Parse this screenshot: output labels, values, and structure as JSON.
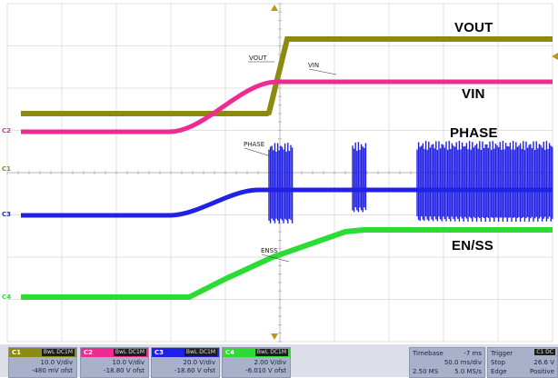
{
  "traces": {
    "vout": {
      "label": "VOUT",
      "tag": "VOUT",
      "color": "#8c8a10"
    },
    "vin": {
      "label": "VIN",
      "tag": "VIN",
      "color": "#ee2a93"
    },
    "phase": {
      "label": "PHASE",
      "tag": "PHASE",
      "color": "#2020e6"
    },
    "enss": {
      "label": "EN/SS",
      "tag": "ENSS",
      "color": "#2bdc35"
    }
  },
  "markers": {
    "c2": "C2",
    "c1": "C1",
    "c3": "C3",
    "c4": "C4"
  },
  "channels": [
    {
      "id": "C1",
      "cpl": "BwL DC1M",
      "vdiv": "10.0 V/div",
      "ofst": "-480 mV ofst",
      "color": "#8c8a10"
    },
    {
      "id": "C2",
      "cpl": "BwL DC1M",
      "vdiv": "10.0 V/div",
      "ofst": "-18.80 V ofst",
      "color": "#ee2a93"
    },
    {
      "id": "C3",
      "cpl": "BwL DC1M",
      "vdiv": "20.0 V/div",
      "ofst": "-18.60 V ofst",
      "color": "#2020e6"
    },
    {
      "id": "C4",
      "cpl": "BwL DC1M",
      "vdiv": "2.00 V/div",
      "ofst": "-6.010 V ofst",
      "color": "#2bdc35"
    }
  ],
  "timebase": {
    "label": "Timebase",
    "delay": "-7 ms",
    "div": "50.0 ms/div",
    "samples": "2.50 MS",
    "rate": "5.0 MS/s"
  },
  "trigger": {
    "label": "Trigger",
    "mode_tag": "C1 DC",
    "state": "Stop",
    "level": "26.6 V",
    "type": "Edge",
    "slope": "Positive"
  }
}
